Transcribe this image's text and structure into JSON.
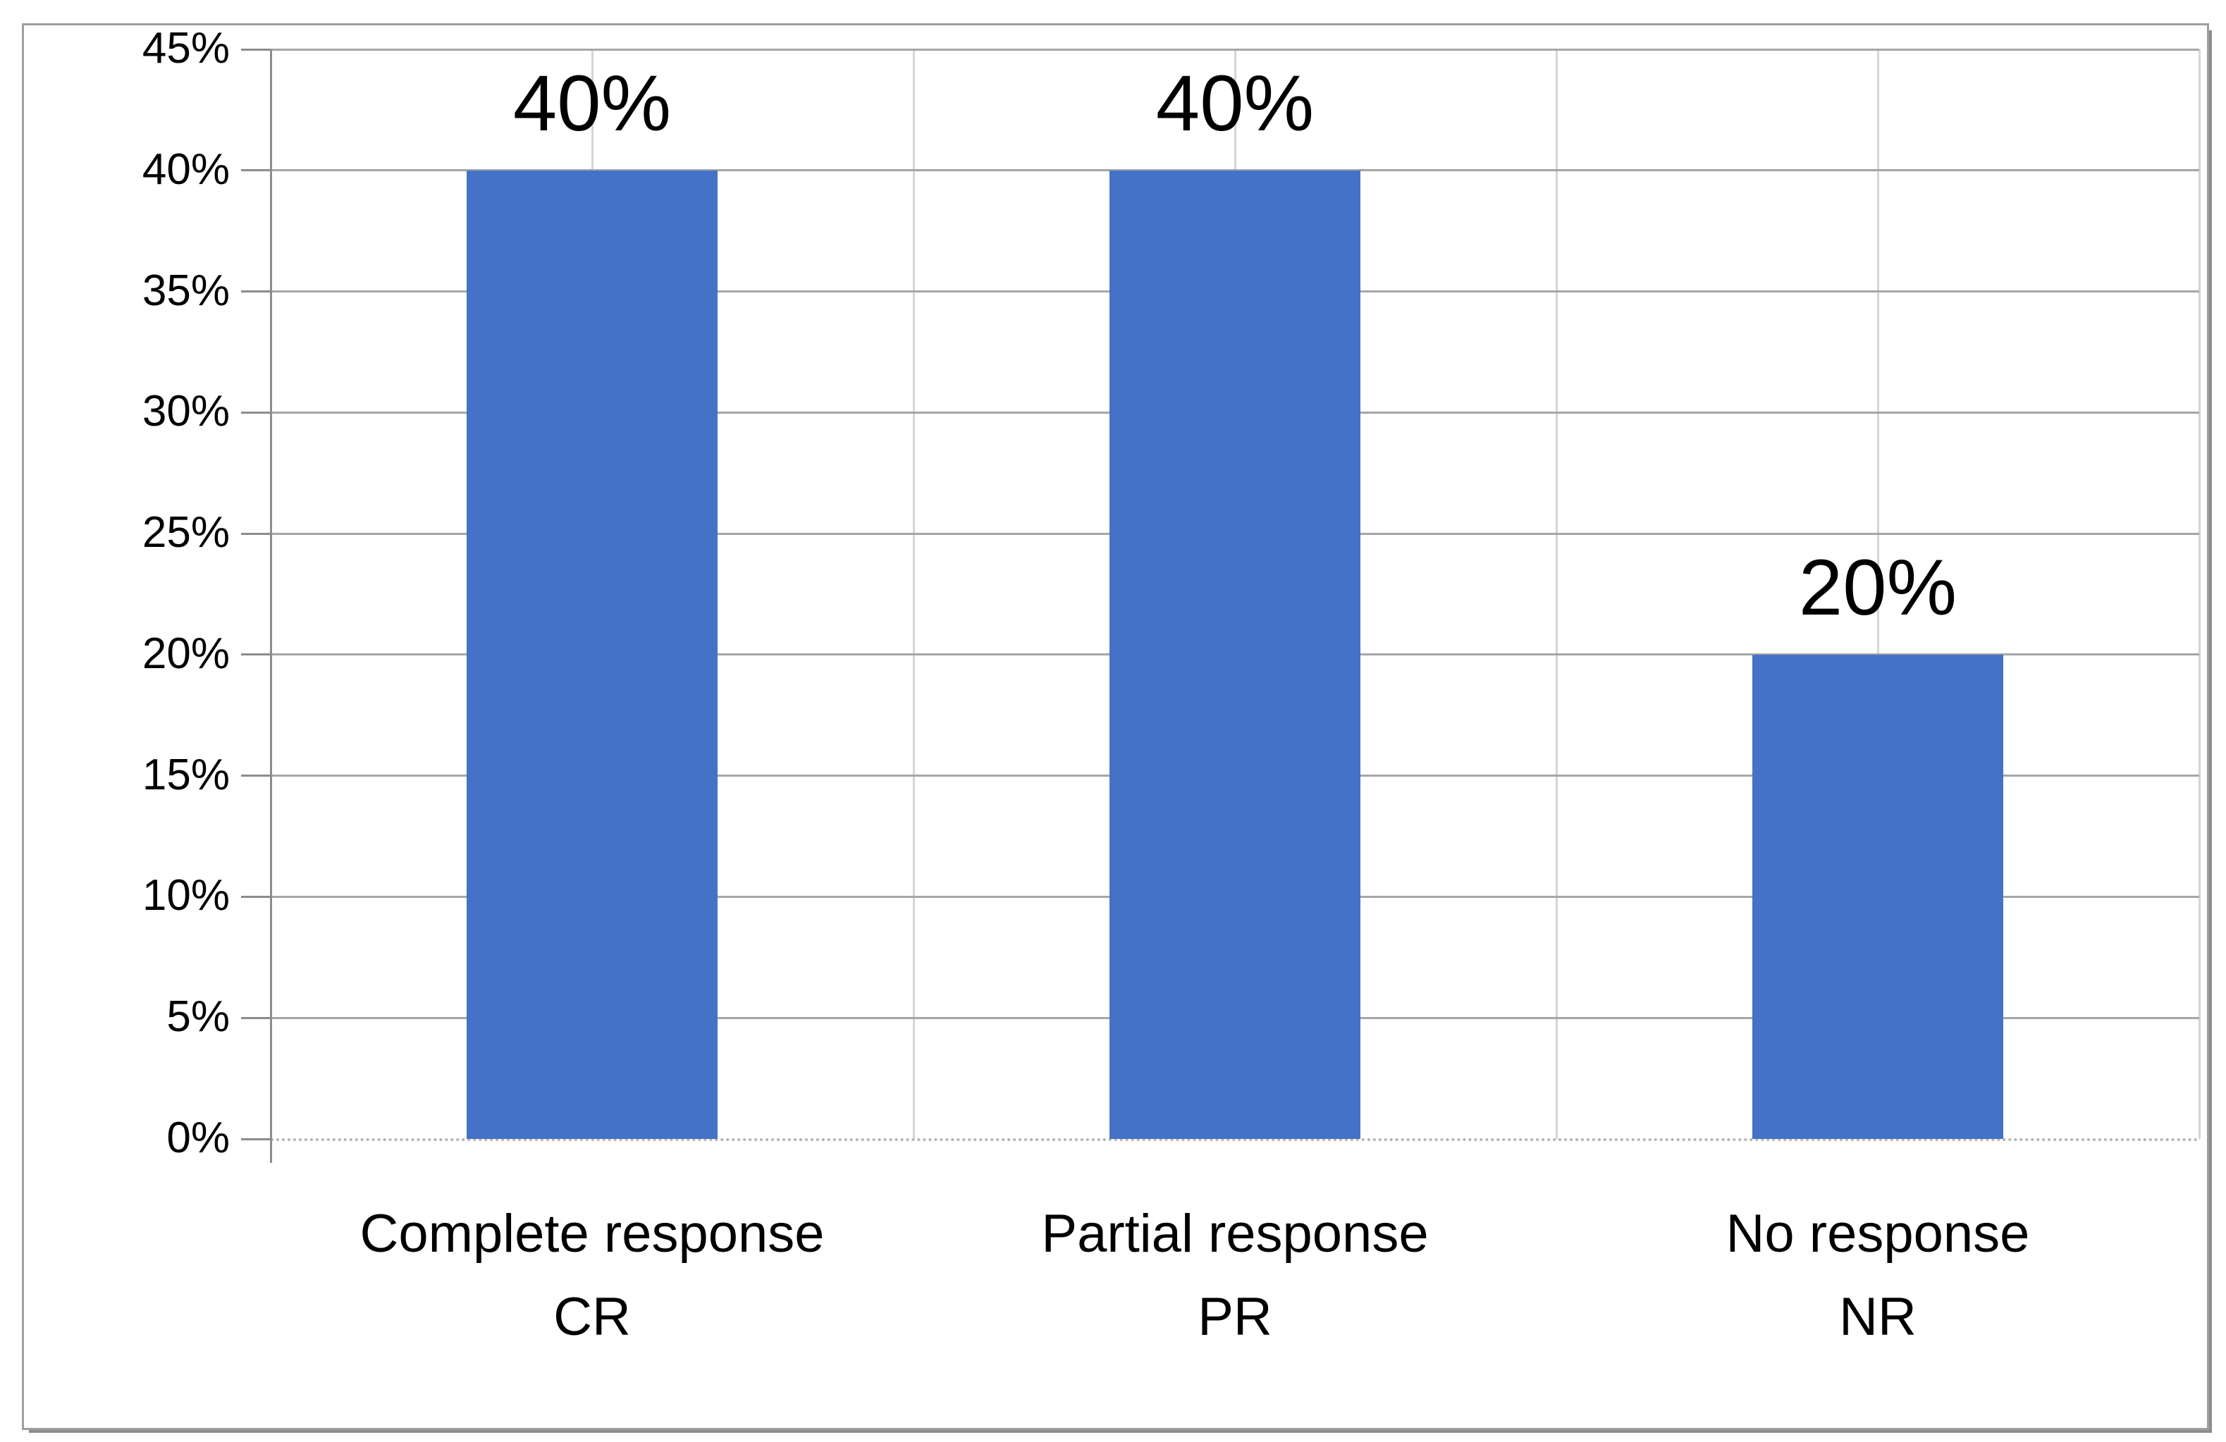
{
  "chart_data": {
    "type": "bar",
    "title": "",
    "categories": [
      "Complete response",
      "Partial response",
      "No response"
    ],
    "category_abbreviations": [
      "CR",
      "PR",
      "NR"
    ],
    "values": [
      40,
      40,
      20
    ],
    "value_unit": "%",
    "data_labels": [
      "40%",
      "40%",
      "20%"
    ],
    "xlabel": "",
    "ylabel": "",
    "ylim": [
      0,
      45
    ],
    "y_tick_step": 5,
    "y_tick_labels": [
      "45%",
      "40%",
      "35%",
      "30%",
      "25%",
      "20%",
      "15%",
      "10%",
      "5%",
      "0%"
    ],
    "grid": {
      "horizontal": true,
      "vertical": true
    },
    "legend_position": "none",
    "colors": {
      "bar": "#4472C6",
      "horizontal_gridline": "#a6a6a6",
      "vertical_gridline": "#d5d5d5",
      "axis_line": "#8c8c8c",
      "baseline_dotted": "#b3b3b3",
      "frame_border": "#9f9f9f",
      "text": "#000000",
      "background": "#ffffff"
    }
  }
}
